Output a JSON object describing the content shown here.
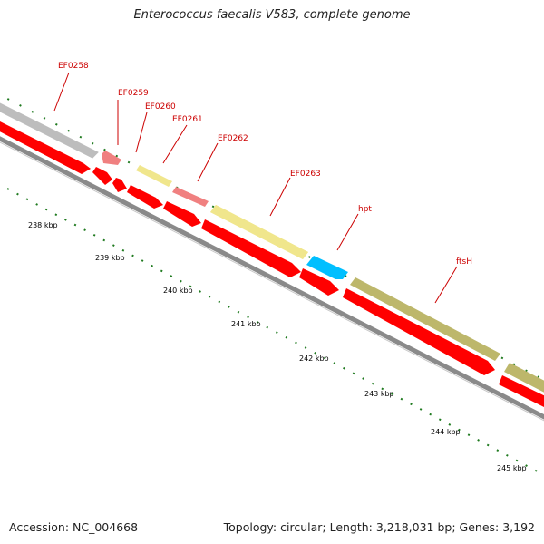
{
  "title": "Enterococcus faecalis V583, complete genome",
  "footer": {
    "accession": "Accession: NC_004668",
    "summary": "Topology: circular; Length: 3,218,031 bp; Genes: 3,192"
  },
  "colors": {
    "background": "#ffffff",
    "backbone": "#8a8a8a",
    "reverse_strand_cds": "#ff0000",
    "gene_label": "#cc0000",
    "ticks": "#1f7a1f",
    "tick_label": "#000000"
  },
  "tick_labels": [
    "238 kbp",
    "239 kbp",
    "240 kbp",
    "241 kbp",
    "242 kbp",
    "243 kbp",
    "244 kbp",
    "245 kbp"
  ],
  "gene_labels": [
    "EF0258",
    "EF0259",
    "EF0260",
    "EF0261",
    "EF0262",
    "EF0263",
    "hpt",
    "ftsH"
  ],
  "feature_colors": {
    "EF0258": "#bdbdbd",
    "EF0259": "#f08080",
    "EF0260": "#f0e68c",
    "EF0261": "#f08080",
    "EF0262": "#f0e68c",
    "EF0263": "#f0e68c",
    "hpt": "#00bfff",
    "ftsH": "#bdb76b"
  }
}
